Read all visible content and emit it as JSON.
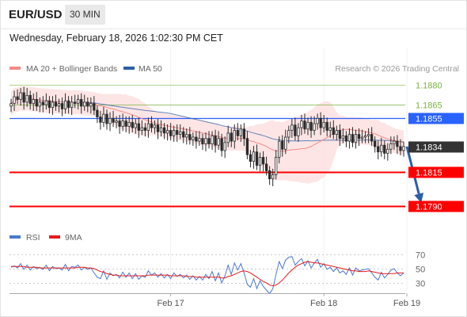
{
  "header": {
    "symbol": "EUR/USD",
    "timeframe": "30 MIN",
    "datetime": "Wednesday, February 18, 2026 1:02:30 PM CET"
  },
  "colors": {
    "resistance": "#7cb342",
    "pivot": "#2962ff",
    "current": "#333333",
    "support": "#ff0000",
    "forecast_arrow": "#2c5ea8",
    "bollinger_fill": "#fde0e0",
    "ma20": "#f48a8a",
    "ma50": "#2c5ea8",
    "rsi": "#4a78d0",
    "rsi_ma": "#e61b1b",
    "candle_up": "#2b2b2b",
    "candle_down": "#2b2b2b"
  },
  "chart_data": [
    {
      "type": "candlestick",
      "legend": [
        {
          "label": "MA 20 + Bollinger Bands",
          "color": "#f48a8a"
        },
        {
          "label": "MA 50",
          "color": "#2c5ea8"
        }
      ],
      "credit": "Research © 2026 Trading Central",
      "ylim": [
        1.1778,
        1.1884
      ],
      "x_ticks": [
        {
          "label": "Feb 17",
          "index": 50
        },
        {
          "label": "Feb 18",
          "index": 98
        },
        {
          "label": "Feb 19",
          "index": 124
        }
      ],
      "levels": [
        {
          "name": "resistance-1880",
          "label": "1.1880",
          "value": 1.188,
          "kind": "resistance-faint"
        },
        {
          "name": "resistance-1865",
          "label": "1.1865",
          "value": 1.1865,
          "kind": "resistance"
        },
        {
          "name": "pivot-1855",
          "label": "1.1855",
          "value": 1.1855,
          "kind": "pivot"
        },
        {
          "name": "current-price",
          "label": "1.1834",
          "value": 1.1834,
          "kind": "current"
        },
        {
          "name": "support-1815",
          "label": "1.1815",
          "value": 1.1815,
          "kind": "support"
        },
        {
          "name": "support-1790",
          "label": "1.1790",
          "value": 1.179,
          "kind": "support"
        }
      ],
      "forecast": {
        "from_index": 123,
        "from_value": 1.1834,
        "to_index": 129,
        "to_value": 1.1792
      },
      "closes": [
        1.1866,
        1.1871,
        1.1869,
        1.1874,
        1.1867,
        1.1872,
        1.1866,
        1.1869,
        1.1864,
        1.1867,
        1.1865,
        1.1868,
        1.1863,
        1.1867,
        1.1864,
        1.1866,
        1.1862,
        1.1868,
        1.1863,
        1.1867,
        1.1866,
        1.1869,
        1.1864,
        1.1867,
        1.1864,
        1.1866,
        1.1861,
        1.1856,
        1.1852,
        1.1858,
        1.1851,
        1.1855,
        1.1852,
        1.1853,
        1.1849,
        1.1853,
        1.1849,
        1.1852,
        1.1848,
        1.1851,
        1.1846,
        1.1848,
        1.1846,
        1.1851,
        1.1848,
        1.185,
        1.1845,
        1.1848,
        1.1844,
        1.1846,
        1.1842,
        1.1846,
        1.1843,
        1.1845,
        1.1841,
        1.1843,
        1.1839,
        1.1841,
        1.1838,
        1.184,
        1.1836,
        1.184,
        1.1836,
        1.1842,
        1.1835,
        1.184,
        1.1831,
        1.1837,
        1.1844,
        1.1838,
        1.1846,
        1.1842,
        1.1847,
        1.184,
        1.1828,
        1.1823,
        1.183,
        1.182,
        1.1826,
        1.1821,
        1.1816,
        1.181,
        1.1813,
        1.1826,
        1.1838,
        1.1832,
        1.1841,
        1.1846,
        1.185,
        1.1842,
        1.1848,
        1.1853,
        1.1847,
        1.1852,
        1.1846,
        1.1851,
        1.1855,
        1.1848,
        1.1852,
        1.1846,
        1.1848,
        1.1843,
        1.1846,
        1.184,
        1.1842,
        1.1838,
        1.1843,
        1.1837,
        1.1843,
        1.184,
        1.1841,
        1.1842,
        1.1843,
        1.1838,
        1.1834,
        1.183,
        1.1835,
        1.1829,
        1.1832,
        1.1836,
        1.1838,
        1.1834,
        1.1831,
        1.1834
      ]
    },
    {
      "type": "line",
      "series": [
        {
          "name": "RSI",
          "color": "#4a78d0",
          "values": [
            52,
            54,
            51,
            57,
            49,
            55,
            48,
            53,
            50,
            52,
            49,
            55,
            47,
            53,
            50,
            51,
            48,
            56,
            47,
            53,
            52,
            55,
            48,
            52,
            49,
            51,
            44,
            38,
            36,
            47,
            35,
            44,
            40,
            42,
            37,
            45,
            38,
            44,
            36,
            43,
            35,
            40,
            38,
            47,
            41,
            44,
            38,
            43,
            37,
            42,
            36,
            44,
            39,
            42,
            37,
            41,
            35,
            40,
            34,
            39,
            34,
            42,
            36,
            46,
            33,
            44,
            30,
            40,
            55,
            42,
            58,
            48,
            57,
            44,
            28,
            24,
            36,
            22,
            33,
            25,
            20,
            15,
            22,
            42,
            60,
            50,
            62,
            66,
            67,
            55,
            60,
            64,
            54,
            61,
            51,
            58,
            63,
            52,
            57,
            49,
            52,
            46,
            51,
            44,
            47,
            42,
            51,
            41,
            51,
            47,
            48,
            49,
            50,
            44,
            38,
            34,
            45,
            37,
            42,
            48,
            50,
            44,
            40,
            44
          ]
        },
        {
          "name": "9MA",
          "color": "#e61b1b",
          "values": [
            53,
            53,
            53,
            53,
            53,
            52,
            52,
            52,
            52,
            51,
            51,
            51,
            51,
            51,
            51,
            51,
            51,
            51,
            51,
            51,
            51,
            52,
            52,
            52,
            51,
            51,
            50,
            48,
            46,
            45,
            43,
            42,
            41,
            41,
            40,
            40,
            40,
            40,
            40,
            40,
            40,
            40,
            40,
            41,
            41,
            41,
            41,
            41,
            41,
            41,
            40,
            40,
            40,
            40,
            40,
            39,
            39,
            39,
            38,
            38,
            38,
            38,
            38,
            38,
            38,
            38,
            37,
            37,
            39,
            40,
            42,
            44,
            46,
            47,
            46,
            44,
            41,
            38,
            35,
            32,
            30,
            27,
            26,
            27,
            30,
            34,
            39,
            44,
            48,
            52,
            55,
            57,
            59,
            60,
            59,
            58,
            58,
            57,
            56,
            55,
            54,
            53,
            52,
            51,
            50,
            49,
            48,
            47,
            47,
            46,
            46,
            46,
            47,
            46,
            45,
            44,
            43,
            43,
            43,
            43,
            43,
            44,
            44,
            44
          ]
        }
      ],
      "ylim": [
        20,
        80
      ],
      "y_ticks": [
        70,
        50,
        30
      ]
    }
  ]
}
